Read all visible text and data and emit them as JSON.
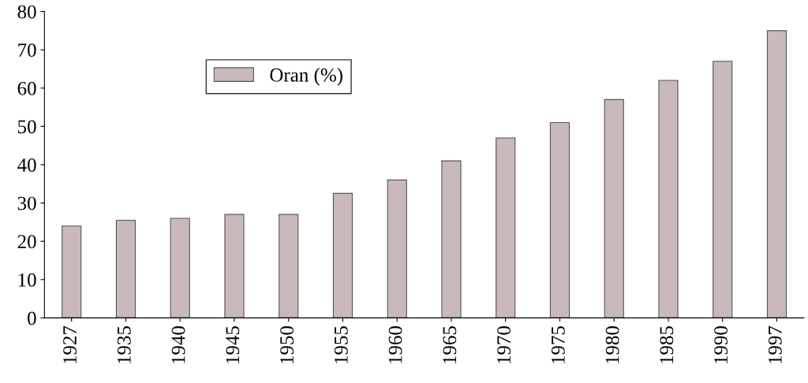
{
  "chart_data": {
    "type": "bar",
    "categories": [
      "1927",
      "1935",
      "1940",
      "1945",
      "1950",
      "1955",
      "1960",
      "1965",
      "1970",
      "1975",
      "1980",
      "1985",
      "1990",
      "1997"
    ],
    "series": [
      {
        "name": "Oran (%)",
        "color": "#c9b9bb",
        "values": [
          24,
          25.5,
          26,
          27,
          27,
          32.5,
          36,
          41,
          47,
          51,
          57,
          62,
          67,
          75
        ]
      }
    ],
    "ylim": [
      0,
      80
    ],
    "yticks": [
      0,
      10,
      20,
      30,
      40,
      50,
      60,
      70,
      80
    ],
    "grid": false,
    "legend": "top left"
  }
}
